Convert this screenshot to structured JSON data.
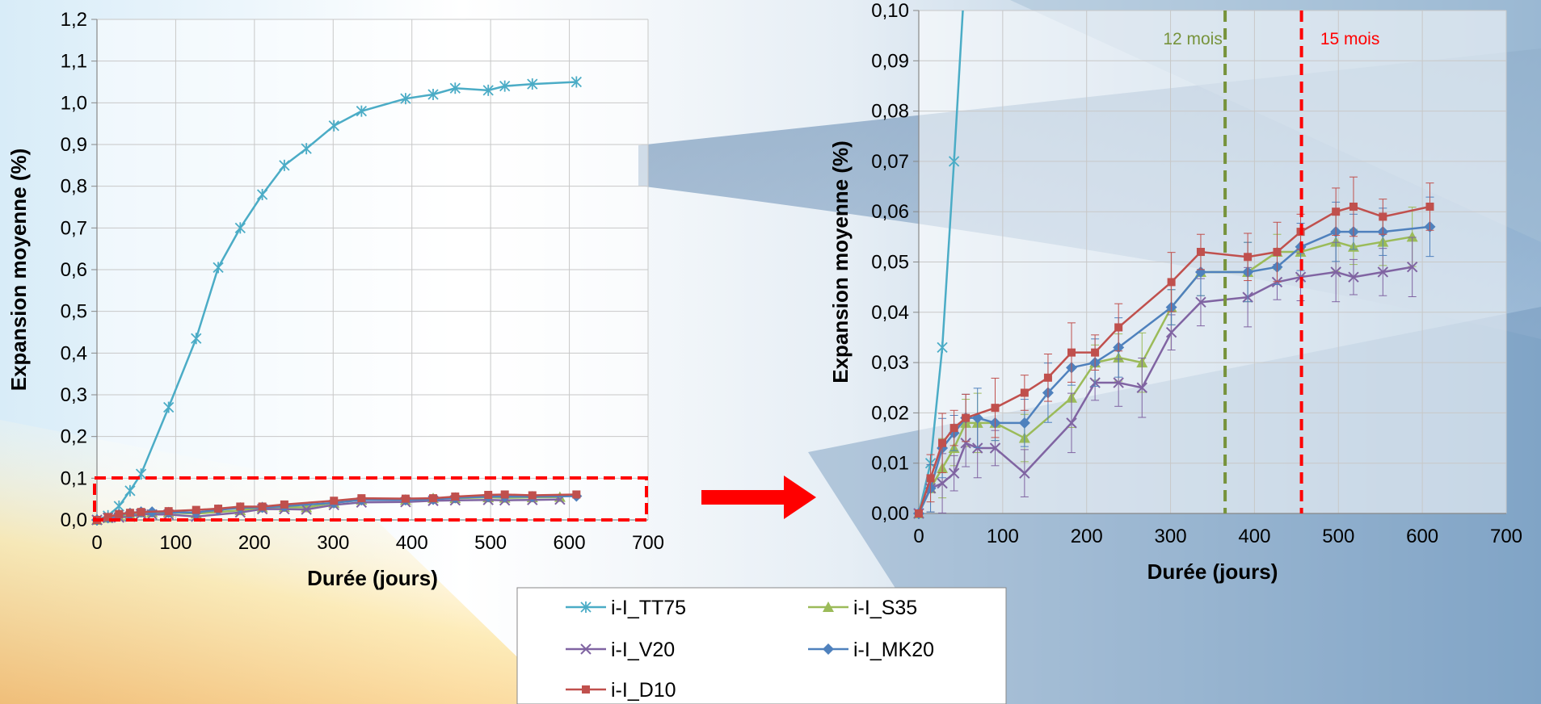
{
  "chart_data": [
    {
      "type": "line",
      "xlabel": "Durée (jours)",
      "ylabel": "Expansion moyenne  (%)",
      "xlim": [
        0,
        700
      ],
      "ylim": [
        0,
        1.2
      ],
      "xticks": [
        "0",
        "100",
        "200",
        "300",
        "400",
        "500",
        "600",
        "700"
      ],
      "yticks": [
        "0,0",
        "0,1",
        "0,2",
        "0,3",
        "0,4",
        "0,5",
        "0,6",
        "0,7",
        "0,8",
        "0,9",
        "1,0",
        "1,1",
        "1,2"
      ],
      "grid": true,
      "series": [
        {
          "name": "i-I_TT75",
          "color": "#4bacc6",
          "marker": "star",
          "x": [
            0,
            14,
            28,
            42,
            56,
            91,
            126,
            154,
            182,
            210,
            238,
            266,
            301,
            336,
            392,
            427,
            455,
            497,
            518,
            553,
            609
          ],
          "y": [
            0.0,
            0.01,
            0.033,
            0.07,
            0.11,
            0.27,
            0.435,
            0.605,
            0.7,
            0.78,
            0.85,
            0.89,
            0.945,
            0.98,
            1.01,
            1.02,
            1.035,
            1.03,
            1.04,
            1.045,
            1.05
          ]
        },
        {
          "name": "i-I_S35",
          "color": "#9bbb59",
          "marker": "triangle",
          "x": [
            0,
            14,
            28,
            42,
            56,
            70,
            91,
            126,
            182,
            210,
            238,
            266,
            301,
            336,
            392,
            427,
            455,
            497,
            518,
            553,
            588
          ],
          "y": [
            0.0,
            0.005,
            0.009,
            0.013,
            0.018,
            0.018,
            0.018,
            0.015,
            0.023,
            0.03,
            0.031,
            0.03,
            0.041,
            0.048,
            0.048,
            0.052,
            0.052,
            0.054,
            0.053,
            0.054,
            0.055
          ]
        },
        {
          "name": "i-I_V20",
          "color": "#8064a2",
          "marker": "x",
          "x": [
            0,
            14,
            28,
            42,
            56,
            70,
            91,
            126,
            182,
            210,
            238,
            266,
            301,
            336,
            392,
            427,
            455,
            497,
            518,
            553,
            588
          ],
          "y": [
            0.0,
            0.005,
            0.006,
            0.008,
            0.014,
            0.013,
            0.013,
            0.008,
            0.018,
            0.026,
            0.026,
            0.025,
            0.036,
            0.042,
            0.043,
            0.046,
            0.047,
            0.048,
            0.047,
            0.048,
            0.049
          ]
        },
        {
          "name": "i-I_MK20",
          "color": "#4f81bd",
          "marker": "diamond",
          "x": [
            0,
            14,
            28,
            42,
            56,
            70,
            91,
            126,
            154,
            182,
            210,
            238,
            301,
            336,
            392,
            427,
            455,
            497,
            518,
            553,
            609
          ],
          "y": [
            0.0,
            0.005,
            0.013,
            0.016,
            0.019,
            0.019,
            0.018,
            0.018,
            0.024,
            0.029,
            0.03,
            0.033,
            0.041,
            0.048,
            0.048,
            0.049,
            0.053,
            0.056,
            0.056,
            0.056,
            0.057
          ]
        },
        {
          "name": "i-I_D10",
          "color": "#c0504d",
          "marker": "square",
          "x": [
            0,
            14,
            28,
            42,
            56,
            91,
            126,
            154,
            182,
            210,
            238,
            301,
            336,
            392,
            427,
            455,
            497,
            518,
            553,
            609
          ],
          "y": [
            0.0,
            0.007,
            0.014,
            0.017,
            0.019,
            0.021,
            0.024,
            0.027,
            0.032,
            0.032,
            0.037,
            0.046,
            0.052,
            0.051,
            0.052,
            0.056,
            0.06,
            0.061,
            0.059,
            0.061
          ]
        }
      ]
    },
    {
      "type": "line",
      "xlabel": "Durée (jours)",
      "ylabel": "Expansion moyenne  (%)",
      "xlim": [
        0,
        700
      ],
      "ylim": [
        0,
        0.1
      ],
      "xticks": [
        "0",
        "100",
        "200",
        "300",
        "400",
        "500",
        "600",
        "700"
      ],
      "yticks": [
        "0,00",
        "0,01",
        "0,02",
        "0,03",
        "0,04",
        "0,05",
        "0,06",
        "0,07",
        "0,08",
        "0,09",
        "0,10"
      ],
      "grid": true,
      "error_bars": true,
      "annotations": [
        {
          "text": "12 mois",
          "x": 365,
          "color": "#77933c",
          "style": "dashed"
        },
        {
          "text": "15 mois",
          "x": 456,
          "color": "#ff0000",
          "style": "dashed"
        }
      ],
      "series_ref": "same as chart 0"
    }
  ],
  "legend": {
    "items": [
      {
        "name": "i-I_TT75",
        "color": "#4bacc6",
        "marker": "star"
      },
      {
        "name": "i-I_S35",
        "color": "#9bbb59",
        "marker": "triangle"
      },
      {
        "name": "i-I_V20",
        "color": "#8064a2",
        "marker": "x"
      },
      {
        "name": "i-I_MK20",
        "color": "#4f81bd",
        "marker": "diamond"
      },
      {
        "name": "i-I_D10",
        "color": "#c0504d",
        "marker": "square"
      }
    ]
  },
  "zoom_arrow_color": "#ff0000",
  "zoom_box_color": "#ff0000"
}
